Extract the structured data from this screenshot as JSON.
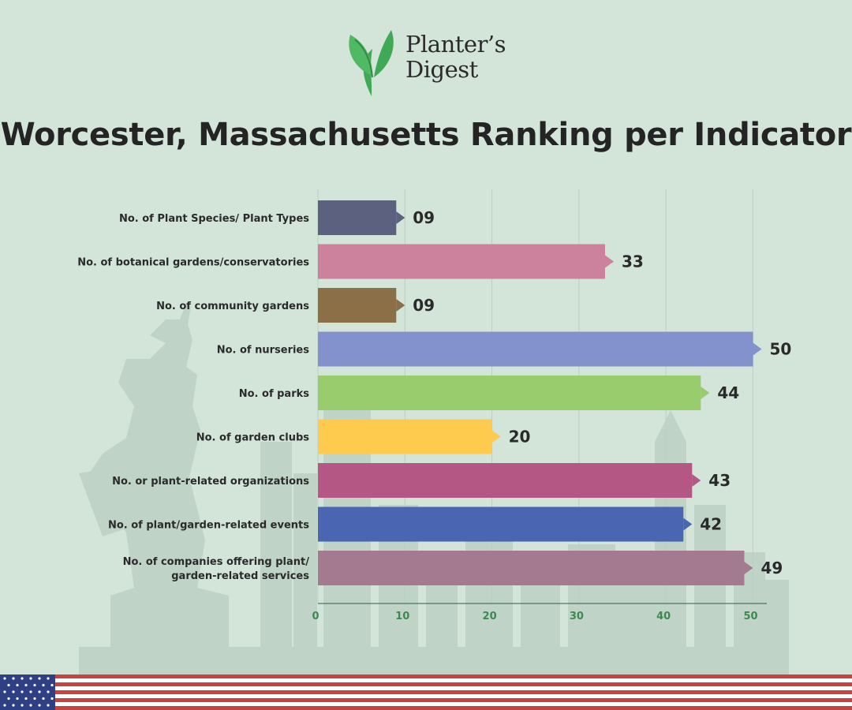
{
  "brand": {
    "line1": "Planter’s",
    "line2": "Digest",
    "leaf_color": "#3fa956"
  },
  "title": "Worcester, Massachusetts Ranking per Indicator",
  "colors": {
    "background": "#d3e4d9",
    "gridline": "#bccfc3",
    "tick_text": "#3b8a4f"
  },
  "chart_data": {
    "type": "bar",
    "orientation": "horizontal",
    "title": "Worcester, Massachusetts Ranking per Indicator",
    "categories": [
      [
        "No. of Plant Species/ Plant Types"
      ],
      [
        "No. of botanical gardens/conservatories"
      ],
      [
        "No. of community gardens"
      ],
      [
        "No. of nurseries"
      ],
      [
        "No. of parks"
      ],
      [
        "No. of garden clubs"
      ],
      [
        "No. or plant-related organizations"
      ],
      [
        "No. of plant/garden-related events"
      ],
      [
        "No. of companies offering plant/",
        "garden-related services"
      ]
    ],
    "values": [
      9,
      33,
      9,
      50,
      44,
      20,
      43,
      42,
      49
    ],
    "value_labels": [
      "09",
      "33",
      "09",
      "50",
      "44",
      "20",
      "43",
      "42",
      "49"
    ],
    "bar_colors": [
      "#5d6180",
      "#cc819c",
      "#8b6f47",
      "#8391cc",
      "#99cc6d",
      "#fecb4f",
      "#b45784",
      "#4a66b3",
      "#a37a8f"
    ],
    "xlim": [
      0,
      52
    ],
    "xticks": [
      0,
      10,
      20,
      30,
      40,
      50
    ],
    "xlabel": "",
    "ylabel": "",
    "grid": true
  }
}
